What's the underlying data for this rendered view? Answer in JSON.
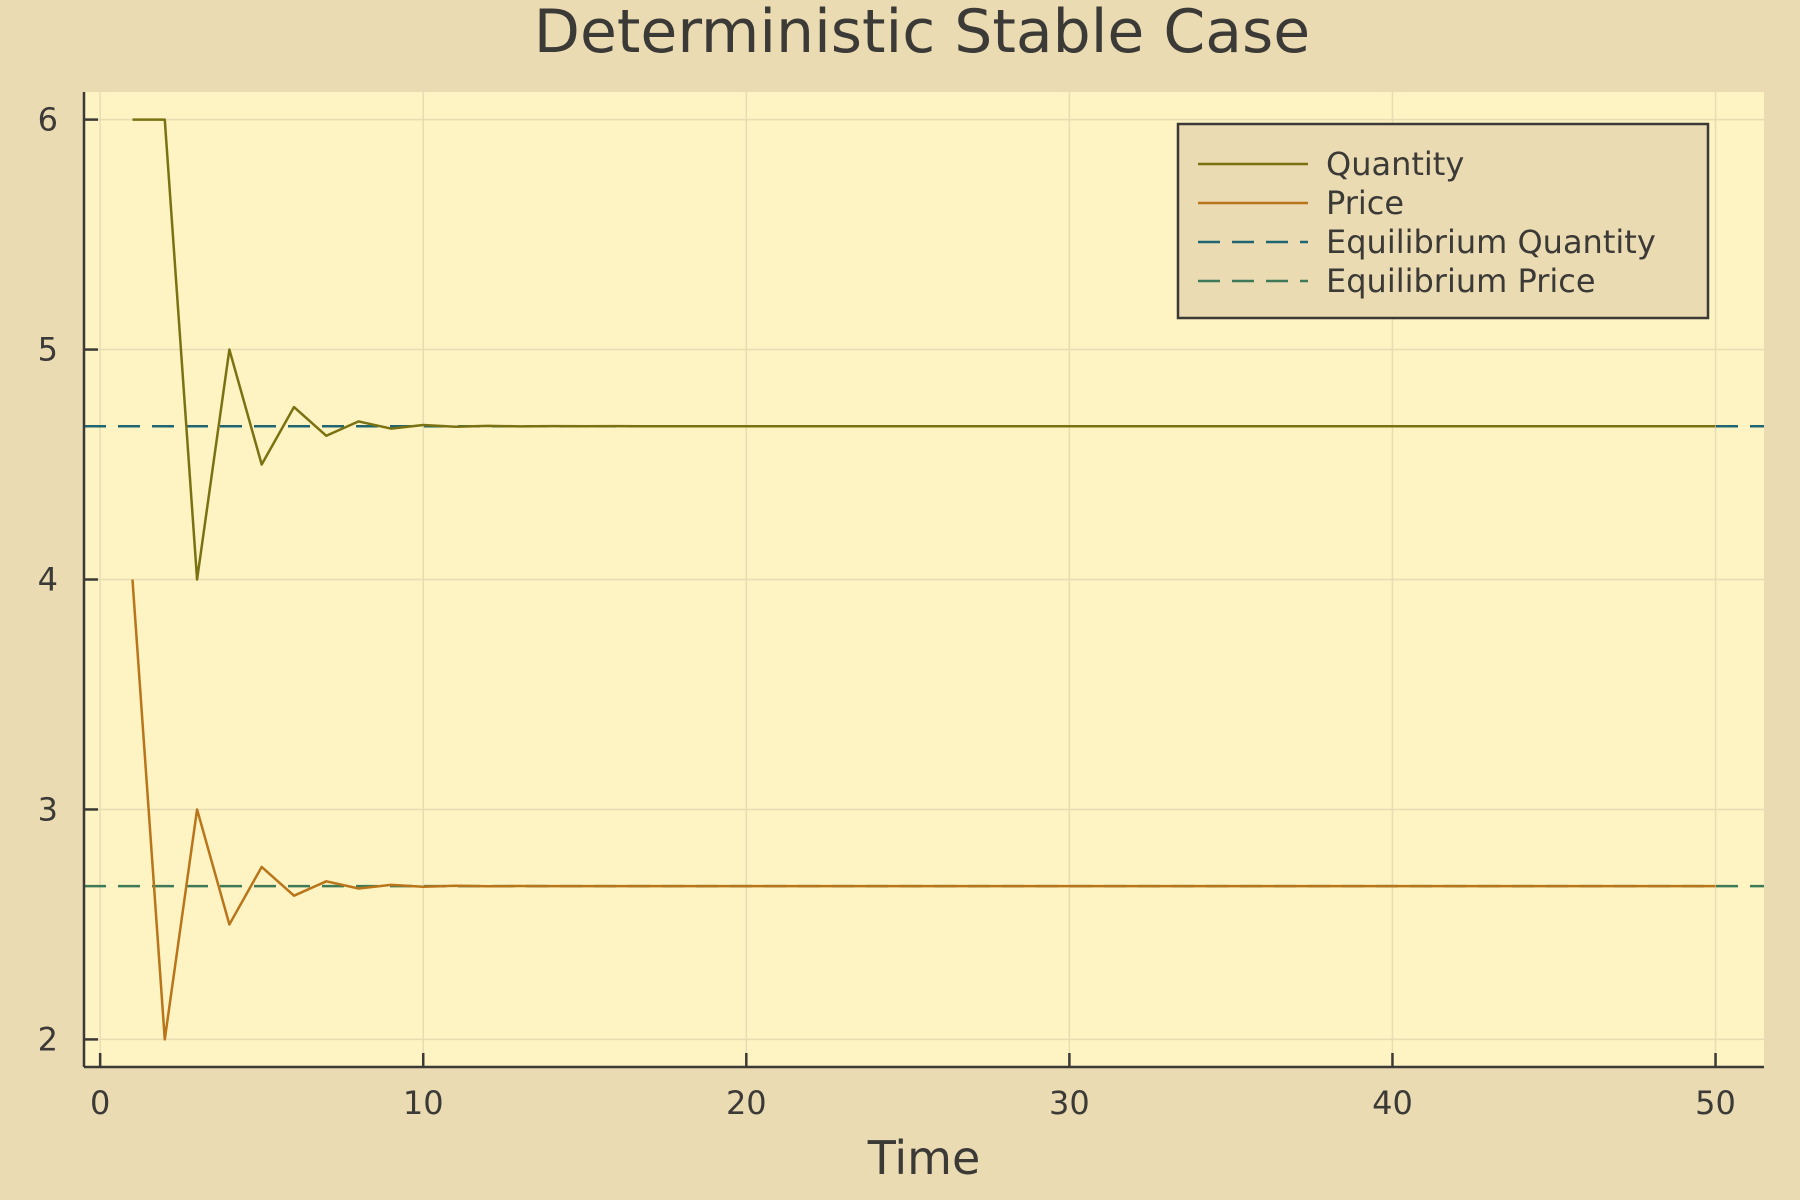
{
  "chart_data": {
    "type": "line",
    "title": "Deterministic Stable Case",
    "xlabel": "Time",
    "ylabel": "",
    "xlim": [
      -0.5,
      51.5
    ],
    "ylim": [
      1.88,
      6.12
    ],
    "xticks": [
      0,
      10,
      20,
      30,
      40,
      50
    ],
    "yticks": [
      2,
      3,
      4,
      5,
      6
    ],
    "xtick_labels": [
      "0",
      "10",
      "20",
      "30",
      "40",
      "50"
    ],
    "ytick_labels": [
      "2",
      "3",
      "4",
      "5",
      "6"
    ],
    "grid": true,
    "legend_position": "top-right",
    "x": [
      1,
      2,
      3,
      4,
      5,
      6,
      7,
      8,
      9,
      10,
      11,
      12,
      13,
      14,
      15,
      16,
      17,
      18,
      19,
      20,
      21,
      22,
      23,
      24,
      25,
      26,
      27,
      28,
      29,
      30,
      31,
      32,
      33,
      34,
      35,
      36,
      37,
      38,
      39,
      40,
      41,
      42,
      43,
      44,
      45,
      46,
      47,
      48,
      49,
      50
    ],
    "series": [
      {
        "name": "Quantity",
        "style": "solid",
        "color": "#7A7212",
        "values": [
          6,
          6,
          4,
          5,
          4.5,
          4.75,
          4.625,
          4.6875,
          4.65625,
          4.671875,
          4.6640625,
          4.66796875,
          4.666015625,
          4.6669921875,
          4.6665,
          4.66675,
          4.66663,
          4.6667,
          4.66666,
          4.66667,
          4.66667,
          4.66667,
          4.66667,
          4.66667,
          4.66667,
          4.66667,
          4.66667,
          4.66667,
          4.66667,
          4.66667,
          4.66667,
          4.66667,
          4.66667,
          4.66667,
          4.66667,
          4.66667,
          4.66667,
          4.66667,
          4.66667,
          4.66667,
          4.66667,
          4.66667,
          4.66667,
          4.66667,
          4.66667,
          4.66667,
          4.66667,
          4.66667,
          4.66667,
          4.66667
        ]
      },
      {
        "name": "Price",
        "style": "solid",
        "color": "#B8751A",
        "values": [
          4,
          2,
          3,
          2.5,
          2.75,
          2.625,
          2.6875,
          2.65625,
          2.671875,
          2.6640625,
          2.66796875,
          2.666015625,
          2.6669921875,
          2.6665,
          2.66675,
          2.66663,
          2.6667,
          2.66666,
          2.66667,
          2.66667,
          2.66667,
          2.66667,
          2.66667,
          2.66667,
          2.66667,
          2.66667,
          2.66667,
          2.66667,
          2.66667,
          2.66667,
          2.66667,
          2.66667,
          2.66667,
          2.66667,
          2.66667,
          2.66667,
          2.66667,
          2.66667,
          2.66667,
          2.66667,
          2.66667,
          2.66667,
          2.66667,
          2.66667,
          2.66667,
          2.66667,
          2.66667,
          2.66667,
          2.66667,
          2.66667
        ]
      },
      {
        "name": "Equilibrium Quantity",
        "style": "dashed",
        "color": "#1F6672",
        "hline": 4.6667
      },
      {
        "name": "Equilibrium Price",
        "style": "dashed",
        "color": "#3F7A58",
        "hline": 2.6667
      }
    ],
    "colors": {
      "page_background": "#EADBB2",
      "plot_background": "#FEF3C2",
      "grid": "#E8DCB5",
      "axis": "#3B3A36",
      "legend_background": "#EADBB2"
    }
  }
}
